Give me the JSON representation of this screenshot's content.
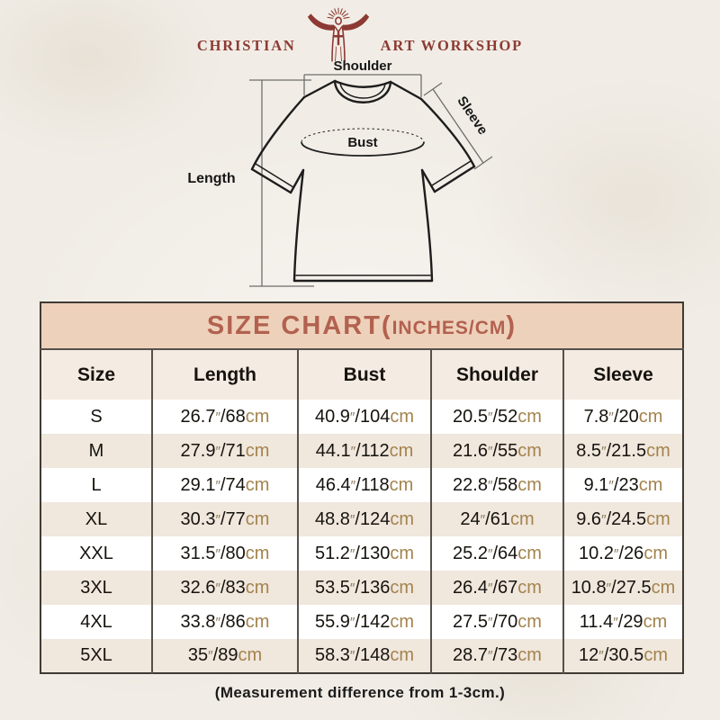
{
  "colors": {
    "background": "#f1ede6",
    "logo_maroon": "#8c3a33",
    "title_bg": "#eed1bb",
    "title_text": "#b2614f",
    "header_row_bg": "#f4ebe2",
    "row_alt_bg": "#f0e7dd",
    "row_bg": "#ffffff",
    "table_border": "#3f3a34",
    "grid_line": "#55504a",
    "text_dark": "#16130e",
    "unit_tan": "#a3834d",
    "inch_mark": "#8d7c5e",
    "diagram_line": "#1d1d1d",
    "measure_line": "#6e6e6e"
  },
  "logo": {
    "left": "CHRISTIAN",
    "right": "ART WORKSHOP",
    "figure_icon": "jesus-sunburst-icon"
  },
  "diagram": {
    "labels": {
      "shoulder": "Shoulder",
      "sleeve": "Sleeve",
      "bust": "Bust",
      "length": "Length"
    }
  },
  "size_chart": {
    "title": {
      "main": "SIZE CHART",
      "open_paren": "(",
      "sub": "INCHES/CM",
      "close_paren": ")"
    },
    "columns": [
      "Size",
      "Length",
      "Bust",
      "Shoulder",
      "Sleeve"
    ],
    "units": {
      "inch_mark": "″",
      "slash": "/",
      "cm_label": "cm"
    },
    "rows": [
      {
        "size": "S",
        "length": {
          "in": "26.7",
          "cm": "68"
        },
        "bust": {
          "in": "40.9",
          "cm": "104"
        },
        "shoulder": {
          "in": "20.5",
          "cm": "52"
        },
        "sleeve": {
          "in": "7.8",
          "cm": "20"
        }
      },
      {
        "size": "M",
        "length": {
          "in": "27.9",
          "cm": "71"
        },
        "bust": {
          "in": "44.1",
          "cm": "112"
        },
        "shoulder": {
          "in": "21.6",
          "cm": "55"
        },
        "sleeve": {
          "in": "8.5",
          "cm": "21.5"
        }
      },
      {
        "size": "L",
        "length": {
          "in": "29.1",
          "cm": "74"
        },
        "bust": {
          "in": "46.4",
          "cm": "118"
        },
        "shoulder": {
          "in": "22.8",
          "cm": "58"
        },
        "sleeve": {
          "in": "9.1",
          "cm": "23"
        }
      },
      {
        "size": "XL",
        "length": {
          "in": "30.3",
          "cm": "77"
        },
        "bust": {
          "in": "48.8",
          "cm": "124"
        },
        "shoulder": {
          "in": "24",
          "cm": "61"
        },
        "sleeve": {
          "in": "9.6",
          "cm": "24.5"
        }
      },
      {
        "size": "XXL",
        "length": {
          "in": "31.5",
          "cm": "80"
        },
        "bust": {
          "in": "51.2",
          "cm": "130"
        },
        "shoulder": {
          "in": "25.2",
          "cm": "64"
        },
        "sleeve": {
          "in": "10.2",
          "cm": "26"
        }
      },
      {
        "size": "3XL",
        "length": {
          "in": "32.6",
          "cm": "83"
        },
        "bust": {
          "in": "53.5",
          "cm": "136"
        },
        "shoulder": {
          "in": "26.4",
          "cm": "67"
        },
        "sleeve": {
          "in": "10.8",
          "cm": "27.5"
        }
      },
      {
        "size": "4XL",
        "length": {
          "in": "33.8",
          "cm": "86"
        },
        "bust": {
          "in": "55.9",
          "cm": "142"
        },
        "shoulder": {
          "in": "27.5",
          "cm": "70"
        },
        "sleeve": {
          "in": "11.4",
          "cm": "29"
        }
      },
      {
        "size": "5XL",
        "length": {
          "in": "35",
          "cm": "89"
        },
        "bust": {
          "in": "58.3",
          "cm": "148"
        },
        "shoulder": {
          "in": "28.7",
          "cm": "73"
        },
        "sleeve": {
          "in": "12",
          "cm": "30.5"
        }
      }
    ]
  },
  "footer": {
    "note": "(Measurement difference from 1-3cm.)"
  },
  "chart_data": {
    "type": "table",
    "title": "SIZE CHART(INCHES/CM)",
    "columns": [
      "Size",
      "Length",
      "Bust",
      "Shoulder",
      "Sleeve"
    ],
    "rows": [
      [
        "S",
        "26.7″/68cm",
        "40.9″/104cm",
        "20.5″/52cm",
        "7.8″/20cm"
      ],
      [
        "M",
        "27.9″/71cm",
        "44.1″/112cm",
        "21.6″/55cm",
        "8.5″/21.5cm"
      ],
      [
        "L",
        "29.1″/74cm",
        "46.4″/118cm",
        "22.8″/58cm",
        "9.1″/23cm"
      ],
      [
        "XL",
        "30.3″/77cm",
        "48.8″/124cm",
        "24″/61cm",
        "9.6″/24.5cm"
      ],
      [
        "XXL",
        "31.5″/80cm",
        "51.2″/130cm",
        "25.2″/64cm",
        "10.2″/26cm"
      ],
      [
        "3XL",
        "32.6″/83cm",
        "53.5″/136cm",
        "26.4″/67cm",
        "10.8″/27.5cm"
      ],
      [
        "4XL",
        "33.8″/86cm",
        "55.9″/142cm",
        "27.5″/70cm",
        "11.4″/29cm"
      ],
      [
        "5XL",
        "35″/89cm",
        "58.3″/148cm",
        "28.7″/73cm",
        "12″/30.5cm"
      ]
    ],
    "note": "(Measurement difference from 1-3cm.)"
  }
}
